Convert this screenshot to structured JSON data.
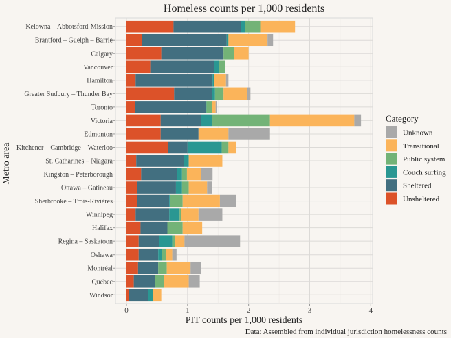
{
  "chart_data": {
    "type": "bar",
    "orientation": "horizontal",
    "stacked": true,
    "title": "Homeless counts per 1,000 residents",
    "xlabel": "PIT counts per 1,000 residents",
    "ylabel": "Metro area",
    "caption": "Data: Assembled from individual jurisdiction homelessness counts",
    "xlim": [
      -0.18,
      4.03
    ],
    "xticks": [
      0,
      1,
      2,
      3,
      4
    ],
    "grid": true,
    "legend": {
      "title": "Category",
      "placement": "right"
    },
    "categories": [
      "Kelowna – Abbotsford-Mission",
      "Brantford – Guelph – Barrie",
      "Calgary",
      "Vancouver",
      "Hamilton",
      "Greater Sudbury – Thunder Bay",
      "Toronto",
      "Victoria",
      "Edmonton",
      "Kitchener – Cambridge – Waterloo",
      "St. Catharines – Niagara",
      "Kingston – Peterborough",
      "Ottawa – Gatineau",
      "Sherbrooke – Trois-Rivières",
      "Winnipeg",
      "Halifax",
      "Regina – Saskatoon",
      "Oshawa",
      "Montréal",
      "Québec",
      "Windsor"
    ],
    "series": [
      {
        "name": "Unsheltered",
        "color": "#dc5229",
        "values": [
          0.77,
          0.25,
          0.57,
          0.39,
          0.15,
          0.78,
          0.14,
          0.56,
          0.56,
          0.68,
          0.16,
          0.24,
          0.17,
          0.18,
          0.15,
          0.23,
          0.2,
          0.2,
          0.19,
          0.12,
          0.04
        ]
      },
      {
        "name": "Sheltered",
        "color": "#426f80",
        "values": [
          1.1,
          1.39,
          1.02,
          1.04,
          1.26,
          0.62,
          1.16,
          0.66,
          0.62,
          0.32,
          0.78,
          0.59,
          0.64,
          0.52,
          0.55,
          0.44,
          0.33,
          0.32,
          0.33,
          0.35,
          0.32
        ]
      },
      {
        "name": "Couch surfing",
        "color": "#2a9792",
        "values": [
          0.07,
          0.03,
          0,
          0.09,
          0.03,
          0.05,
          0.01,
          0.18,
          0,
          0.56,
          0.08,
          0.08,
          0.1,
          0.01,
          0.17,
          0,
          0.22,
          0.06,
          0,
          0,
          0.07
        ]
      },
      {
        "name": "Public system",
        "color": "#73b377",
        "values": [
          0.25,
          0,
          0.17,
          0.09,
          0,
          0.14,
          0.09,
          0.95,
          0,
          0.11,
          0,
          0.08,
          0.11,
          0.21,
          0.02,
          0.25,
          0.04,
          0.07,
          0.14,
          0.14,
          0
        ]
      },
      {
        "name": "Transitional",
        "color": "#fbb45a",
        "values": [
          0.57,
          0.64,
          0.24,
          0.01,
          0.19,
          0.39,
          0.06,
          1.38,
          0.49,
          0.13,
          0.55,
          0.23,
          0.3,
          0.61,
          0.29,
          0.32,
          0.16,
          0.1,
          0.39,
          0.41,
          0.14
        ]
      },
      {
        "name": "Unknown",
        "color": "#a9a9a9",
        "values": [
          0,
          0.09,
          0,
          0,
          0.04,
          0.05,
          0.02,
          0.11,
          0.68,
          0,
          0,
          0.19,
          0.08,
          0.26,
          0.39,
          0,
          0.91,
          0.07,
          0.17,
          0.18,
          0
        ]
      }
    ],
    "legend_order": [
      "Unknown",
      "Transitional",
      "Public system",
      "Couch surfing",
      "Sheltered",
      "Unsheltered"
    ]
  }
}
